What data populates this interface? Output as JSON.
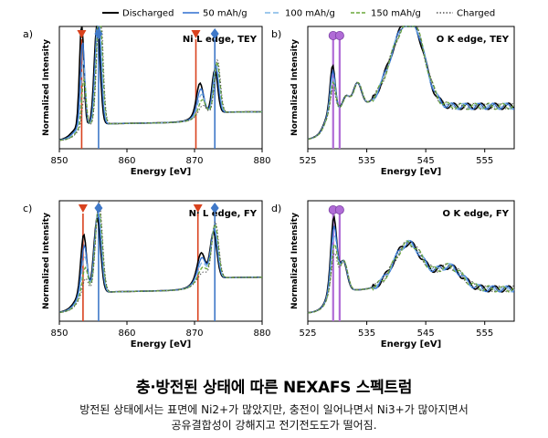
{
  "colors": {
    "Discharged": "#000000",
    "50 mAh/g": "#2f6fd0",
    "100 mAh/g": "#7fb6e6",
    "150 mAh/g": "#6aa83a",
    "Charged": "#555555",
    "red_marker": "#d9421e",
    "blue_marker": "#3f78c8",
    "purple_marker": "#b06bd6"
  },
  "legend": [
    "Discharged",
    "50 mAh/g",
    "100 mAh/g",
    "150 mAh/g",
    "Charged"
  ],
  "caption": {
    "title": "충·방전된 상태에 따른 NEXAFS 스펙트럼",
    "line1": "방전된 상태에서는 표면에 Ni2+가 많았지만, 충전이 일어나면서 Ni3+가 많아지면서",
    "line2": "공유결합성이 강해지고 전기전도도가 떨어짐."
  },
  "chart_data": [
    {
      "id": "a",
      "panel_label": "a)",
      "type": "line",
      "title": "Ni L edge, TEY",
      "xlabel": "Energy [eV]",
      "ylabel": "Normalized Intensity",
      "xlim": [
        850,
        880
      ],
      "xticks": [
        850,
        860,
        870,
        880
      ],
      "ylim": [
        0,
        1
      ],
      "peaks": [
        {
          "x": 853.3,
          "a": 0.85,
          "w": 0.45
        },
        {
          "x": 855.6,
          "a": 0.85,
          "w": 0.6
        },
        {
          "x": 870.8,
          "a": 0.25,
          "w": 0.7
        },
        {
          "x": 873.0,
          "a": 0.35,
          "w": 0.6
        }
      ],
      "shift": [
        0,
        0.9,
        1.5,
        2.2,
        2.6
      ],
      "edge": 0.16,
      "markers": [
        {
          "x": 853.3,
          "shape": "triangle-down",
          "color": "red_marker"
        },
        {
          "x": 855.8,
          "shape": "diamond",
          "color": "blue_marker"
        },
        {
          "x": 870.2,
          "shape": "triangle-down",
          "color": "red_marker"
        },
        {
          "x": 873.0,
          "shape": "diamond",
          "color": "blue_marker"
        }
      ]
    },
    {
      "id": "b",
      "panel_label": "b)",
      "type": "line",
      "title": "O K edge, TEY",
      "xlabel": "Energy [eV]",
      "ylabel": "Normalized Intensity",
      "xlim": [
        525,
        560
      ],
      "xticks": [
        525,
        535,
        545,
        555
      ],
      "ylim": [
        0,
        1
      ],
      "peaks": [
        {
          "x": 529.2,
          "a": 0.38,
          "w": 0.6
        },
        {
          "x": 531.5,
          "a": 0.1,
          "w": 0.8
        },
        {
          "x": 533.4,
          "a": 0.2,
          "w": 1.0
        },
        {
          "x": 541.0,
          "a": 0.55,
          "w": 3.5
        },
        {
          "x": 543.5,
          "a": 0.3,
          "w": 2.5
        }
      ],
      "shift": [
        0,
        0.2,
        0.3,
        0.5,
        0.4
      ],
      "edge": 0.3,
      "markers": [
        {
          "x": 529.3,
          "shape": "circle",
          "color": "purple_marker"
        },
        {
          "x": 530.4,
          "shape": "circle",
          "color": "purple_marker"
        }
      ]
    },
    {
      "id": "c",
      "panel_label": "c)",
      "type": "line",
      "title": "Ni L edge, FY",
      "xlabel": "Energy [eV]",
      "ylabel": "Normalized Intensity",
      "xlim": [
        850,
        880
      ],
      "xticks": [
        850,
        860,
        870,
        880
      ],
      "ylim": [
        0,
        1
      ],
      "peaks": [
        {
          "x": 853.6,
          "a": 0.5,
          "w": 0.6
        },
        {
          "x": 855.6,
          "a": 0.62,
          "w": 0.7
        },
        {
          "x": 871.0,
          "a": 0.22,
          "w": 0.8
        },
        {
          "x": 872.8,
          "a": 0.38,
          "w": 0.7
        }
      ],
      "shift": [
        0,
        0.6,
        1.0,
        1.5,
        1.8
      ],
      "edge": 0.2,
      "markers": [
        {
          "x": 853.5,
          "shape": "triangle-down",
          "color": "red_marker"
        },
        {
          "x": 855.8,
          "shape": "diamond",
          "color": "blue_marker"
        },
        {
          "x": 870.5,
          "shape": "triangle-down",
          "color": "red_marker"
        },
        {
          "x": 873.0,
          "shape": "diamond",
          "color": "blue_marker"
        }
      ]
    },
    {
      "id": "d",
      "panel_label": "d)",
      "type": "line",
      "title": "O K edge, FY",
      "xlabel": "Energy [eV]",
      "ylabel": "Normalized Intensity",
      "xlim": [
        525,
        560
      ],
      "xticks": [
        525,
        535,
        545,
        555
      ],
      "ylim": [
        0,
        1
      ],
      "peaks": [
        {
          "x": 529.4,
          "a": 0.62,
          "w": 0.7
        },
        {
          "x": 531.0,
          "a": 0.25,
          "w": 0.9
        },
        {
          "x": 542.0,
          "a": 0.38,
          "w": 3.5
        },
        {
          "x": 549.0,
          "a": 0.18,
          "w": 3.0
        }
      ],
      "shift": [
        0,
        0.2,
        0.4,
        0.6,
        0.5
      ],
      "edge": 0.22,
      "markers": [
        {
          "x": 529.3,
          "shape": "circle",
          "color": "purple_marker"
        },
        {
          "x": 530.4,
          "shape": "circle",
          "color": "purple_marker"
        }
      ]
    }
  ]
}
